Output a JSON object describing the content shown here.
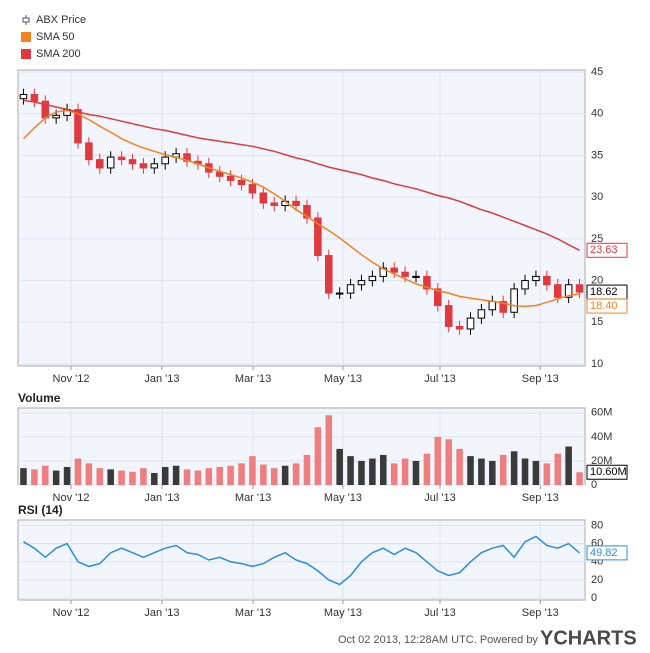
{
  "chart_data": [
    {
      "type": "candlestick",
      "xlim": [
        -0.5,
        51.5
      ],
      "xticks": [
        {
          "value": 4.36,
          "label": "Nov '12"
        },
        {
          "value": 12.7,
          "label": "Jan '13"
        },
        {
          "value": 21.06,
          "label": "Mar '13"
        },
        {
          "value": 29.3,
          "label": "May '13"
        },
        {
          "value": 38.2,
          "label": "Jul '13"
        },
        {
          "value": 47.4,
          "label": "Sep '13"
        }
      ],
      "ylim": [
        10,
        45
      ],
      "yticks": [
        10,
        15,
        20,
        25,
        30,
        35,
        40,
        45
      ],
      "grid": true,
      "series": [
        {
          "name": "ABX Price",
          "up_color": "#000000",
          "down_color": "#e0393e",
          "open": [
            41.8,
            42.3,
            41.5,
            39.5,
            39.8,
            40.5,
            36.5,
            34.5,
            33.5,
            34.8,
            34.5,
            34,
            33.5,
            34,
            34.8,
            35.2,
            34.3,
            34,
            33,
            32.5,
            32,
            31.5,
            30.5,
            29.3,
            29,
            29.5,
            29,
            27.5,
            23,
            18.5,
            18.5,
            19.5,
            20,
            20.5,
            21.5,
            21,
            20.5,
            20.5,
            19,
            17,
            14.5,
            14.2,
            15.5,
            16.5,
            17.5,
            16.2,
            19,
            20,
            20.5,
            19.5,
            18,
            19.5
          ],
          "high": [
            43,
            43,
            42.2,
            40.5,
            41.2,
            41.2,
            37.2,
            35.2,
            35.5,
            35.5,
            35.2,
            34.7,
            34.7,
            35.5,
            35.9,
            35.9,
            35,
            34.7,
            33.7,
            33.2,
            32.7,
            32.2,
            31.2,
            30,
            30.2,
            30.2,
            29.7,
            28.2,
            23.7,
            19.2,
            20.2,
            20.7,
            21.2,
            22.2,
            22.2,
            21.7,
            21.2,
            21.2,
            19.7,
            17.7,
            15.2,
            16.2,
            17.2,
            18.2,
            18.2,
            19.7,
            20.7,
            21.2,
            21.2,
            20.2,
            20.2,
            20.2
          ],
          "low": [
            41.1,
            40.8,
            38.8,
            38.8,
            39.1,
            35.8,
            33.8,
            32.8,
            32.8,
            33.8,
            33.3,
            32.8,
            32.8,
            33.3,
            34.1,
            33.6,
            33.3,
            32.3,
            31.8,
            31.3,
            30.8,
            29.8,
            28.6,
            28.3,
            28.3,
            28.3,
            26.8,
            22.3,
            17.8,
            17.8,
            17.8,
            18.8,
            19.3,
            19.8,
            20.3,
            19.8,
            19.8,
            18.3,
            16.3,
            13.8,
            13.5,
            13.5,
            14.8,
            15.8,
            15.5,
            15.5,
            18.3,
            19.3,
            18.8,
            17.3,
            17.3,
            17.9
          ],
          "close": [
            42.3,
            41.5,
            39.5,
            39.8,
            40.5,
            36.5,
            34.5,
            33.5,
            34.8,
            34.5,
            34,
            33.5,
            34,
            34.8,
            35.2,
            34.3,
            34,
            33,
            32.5,
            32,
            31.5,
            30.5,
            29.3,
            29,
            29.5,
            29,
            27.5,
            23,
            18.5,
            18.5,
            19.5,
            20,
            20.5,
            21.5,
            21,
            20.5,
            20.5,
            19,
            17,
            14.5,
            14.2,
            15.5,
            16.5,
            17.5,
            16.2,
            19,
            20,
            20.5,
            19.5,
            18,
            19.5,
            18.62
          ]
        },
        {
          "name": "SMA 50",
          "color": "#f58220",
          "last_label": "18.40",
          "values": [
            37,
            38.3,
            39.5,
            40.2,
            40.4,
            40,
            39.3,
            38.5,
            37.8,
            37,
            36.4,
            35.9,
            35.5,
            35.1,
            34.8,
            34.4,
            34,
            33.5,
            33.1,
            32.7,
            32.3,
            31.8,
            31.2,
            30.4,
            29.5,
            28.5,
            27.7,
            26.8,
            26,
            25.1,
            24.1,
            23.1,
            22.2,
            21.4,
            20.8,
            20.2,
            19.6,
            19.2,
            18.8,
            18.5,
            18.1,
            17.9,
            17.7,
            17.5,
            17.3,
            17,
            16.9,
            17,
            17.4,
            17.8,
            18.2,
            18.4
          ]
        },
        {
          "name": "SMA 200",
          "color": "#e03a3e",
          "values": [
            41.6,
            41.4,
            41.1,
            40.8,
            40.5,
            40.2,
            39.9,
            39.7,
            39.4,
            39.1,
            38.8,
            38.5,
            38.2,
            38,
            37.7,
            37.4,
            37.1,
            36.9,
            36.7,
            36.5,
            36.3,
            36.1,
            35.8,
            35.5,
            35.1,
            34.7,
            34.4,
            34,
            33.6,
            33.3,
            33,
            32.7,
            32.3,
            32,
            31.6,
            31.3,
            31,
            30.6,
            30.2,
            29.9,
            29.5,
            29,
            28.5,
            28.1,
            27.6,
            27.1,
            26.6,
            26.1,
            25.6,
            25,
            24.3,
            23.63
          ]
        }
      ]
    },
    {
      "type": "bar",
      "title": "Volume",
      "xlim": [
        -0.5,
        51.5
      ],
      "xticks": [
        {
          "value": 4.36,
          "label": "Nov '12"
        },
        {
          "value": 12.7,
          "label": "Jan '13"
        },
        {
          "value": 21.06,
          "label": "Mar '13"
        },
        {
          "value": 29.3,
          "label": "May '13"
        },
        {
          "value": 38.2,
          "label": "Jul '13"
        },
        {
          "value": 47.4,
          "label": "Sep '13"
        }
      ],
      "ylim": [
        0,
        64000000
      ],
      "yticks": [
        0,
        {
          "value": 20000000,
          "label": "20M"
        },
        {
          "value": 40000000,
          "label": "40M"
        },
        {
          "value": 60000000,
          "label": "60M"
        }
      ],
      "grid": true,
      "up_color": "#3a3a3a",
      "down_color": "#ef7f7f",
      "last_label": "10.60M",
      "values": [
        14000000,
        13000000,
        16000000,
        12000000,
        15000000,
        22000000,
        18000000,
        14000000,
        13000000,
        12000000,
        11000000,
        14000000,
        10000000,
        15000000,
        16000000,
        13000000,
        12000000,
        14000000,
        15000000,
        16000000,
        18000000,
        24000000,
        17000000,
        14000000,
        16000000,
        18000000,
        25000000,
        48000000,
        58000000,
        30000000,
        24000000,
        20000000,
        22000000,
        25000000,
        18000000,
        22000000,
        20000000,
        26000000,
        40000000,
        38000000,
        30000000,
        24000000,
        22000000,
        20000000,
        25000000,
        28000000,
        22000000,
        20000000,
        18000000,
        26000000,
        32000000,
        10600000
      ]
    },
    {
      "type": "line",
      "title": "RSI (14)",
      "xlim": [
        -0.5,
        51.5
      ],
      "xticks": [
        {
          "value": 4.36,
          "label": "Nov '12"
        },
        {
          "value": 12.7,
          "label": "Jan '13"
        },
        {
          "value": 21.06,
          "label": "Mar '13"
        },
        {
          "value": 29.3,
          "label": "May '13"
        },
        {
          "value": 38.2,
          "label": "Jul '13"
        },
        {
          "value": 47.4,
          "label": "Sep '13"
        }
      ],
      "ylim": [
        -2,
        86
      ],
      "yticks": [
        0,
        20,
        40,
        60,
        80
      ],
      "grid": true,
      "color": "#2a8fd4",
      "values": [
        62,
        55,
        45,
        55,
        60,
        40,
        35,
        38,
        50,
        55,
        50,
        45,
        50,
        55,
        58,
        50,
        48,
        42,
        45,
        40,
        38,
        35,
        38,
        45,
        50,
        42,
        38,
        30,
        20,
        15,
        25,
        40,
        50,
        55,
        48,
        55,
        50,
        40,
        30,
        25,
        28,
        40,
        50,
        55,
        58,
        45,
        62,
        68,
        58,
        55,
        60,
        49.82
      ]
    }
  ],
  "footer": {
    "timestamp": "Oct 02 2013, 12:28AM UTC.  Powered by",
    "brand": "YCHARTS"
  }
}
